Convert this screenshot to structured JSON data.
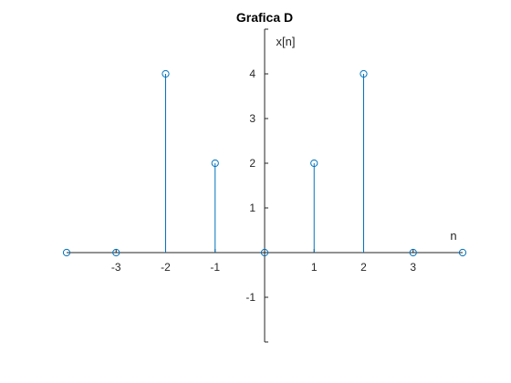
{
  "chart_data": {
    "type": "stem",
    "title": "Grafica D",
    "xlabel": "n",
    "ylabel": "x[n]",
    "xlim": [
      -4,
      4
    ],
    "ylim": [
      -2,
      5
    ],
    "x_ticks": [
      -3,
      -2,
      -1,
      1,
      2,
      3
    ],
    "y_ticks": [
      -1,
      1,
      2,
      3,
      4
    ],
    "series": [
      {
        "x": [
          -4,
          -3,
          -2,
          -1,
          0,
          1,
          2,
          3,
          4
        ],
        "y": [
          0,
          0,
          4,
          2,
          0,
          2,
          4,
          0,
          0
        ]
      }
    ],
    "grid": false,
    "legend": "none",
    "colors": {
      "stem": "#0072BD",
      "axis": "#262626"
    }
  }
}
